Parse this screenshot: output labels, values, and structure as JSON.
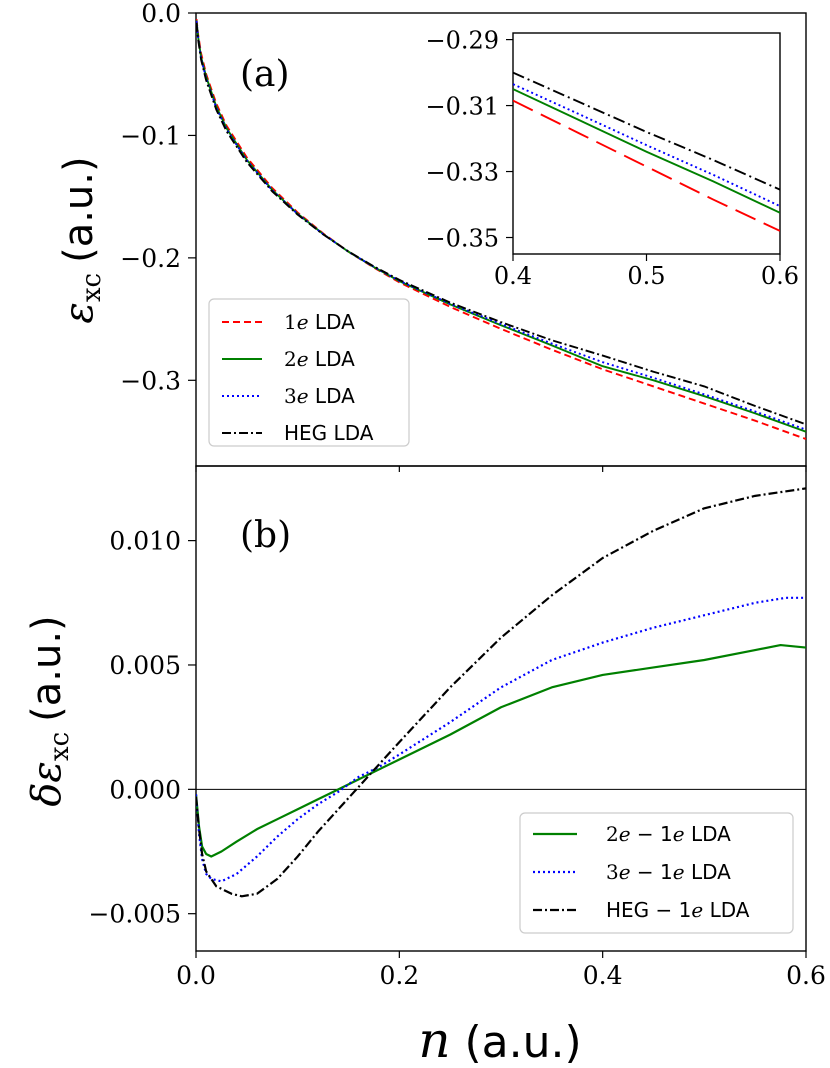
{
  "colors": {
    "red": "#ff0000",
    "green": "#008000",
    "blue": "#0000ff",
    "black": "#000000"
  },
  "chart_data": [
    {
      "id": "panel-a",
      "type": "line",
      "panel_label": "(a)",
      "ylabel": {
        "symbol": "ε",
        "subscript": "xc",
        "units": "(a.u.)"
      },
      "xlabel": {
        "symbol": "n",
        "units": "(a.u.)"
      },
      "xlim": [
        0.0,
        0.6
      ],
      "ylim": [
        -0.37,
        0.0
      ],
      "yticks": [
        0.0,
        -0.1,
        -0.2,
        -0.3
      ],
      "ytick_labels": [
        "0.0",
        "−0.1",
        "−0.2",
        "−0.3"
      ],
      "xticks": [
        0.0,
        0.2,
        0.4,
        0.6
      ],
      "legend_position": "bottom-left",
      "series": [
        {
          "name": "1e LDA",
          "legend_prefix": "1",
          "legend_sym": "e",
          "legend_suffix": " LDA",
          "color": "#ff0000",
          "dash": "7,4",
          "x": [
            0.0005,
            0.002,
            0.005,
            0.01,
            0.02,
            0.03,
            0.05,
            0.075,
            0.1,
            0.125,
            0.15,
            0.175,
            0.2,
            0.25,
            0.3,
            0.35,
            0.4,
            0.45,
            0.5,
            0.55,
            0.6
          ],
          "y": [
            -0.005,
            -0.017,
            -0.033,
            -0.05,
            -0.074,
            -0.092,
            -0.118,
            -0.143,
            -0.163,
            -0.18,
            -0.195,
            -0.208,
            -0.22,
            -0.24,
            -0.258,
            -0.275,
            -0.291,
            -0.305,
            -0.319,
            -0.333,
            -0.348
          ]
        },
        {
          "name": "2e LDA",
          "legend_prefix": "2",
          "legend_sym": "e",
          "legend_suffix": " LDA",
          "color": "#008000",
          "dash": "",
          "x": [
            0.0005,
            0.002,
            0.005,
            0.01,
            0.02,
            0.03,
            0.05,
            0.075,
            0.1,
            0.125,
            0.15,
            0.175,
            0.2,
            0.25,
            0.3,
            0.35,
            0.4,
            0.45,
            0.5,
            0.55,
            0.6
          ],
          "y": [
            -0.006,
            -0.019,
            -0.036,
            -0.052,
            -0.0765,
            -0.094,
            -0.12,
            -0.1445,
            -0.164,
            -0.1805,
            -0.195,
            -0.2075,
            -0.219,
            -0.238,
            -0.255,
            -0.2715,
            -0.2885,
            -0.3,
            -0.313,
            -0.327,
            -0.342
          ]
        },
        {
          "name": "3e LDA",
          "legend_prefix": "3",
          "legend_sym": "e",
          "legend_suffix": " LDA",
          "color": "#0000ff",
          "dash": "2,3",
          "x": [
            0.0005,
            0.002,
            0.005,
            0.01,
            0.02,
            0.03,
            0.05,
            0.075,
            0.1,
            0.125,
            0.15,
            0.175,
            0.2,
            0.25,
            0.3,
            0.35,
            0.4,
            0.45,
            0.5,
            0.55,
            0.6
          ],
          "y": [
            -0.0065,
            -0.0195,
            -0.037,
            -0.0535,
            -0.0775,
            -0.095,
            -0.1205,
            -0.1448,
            -0.1642,
            -0.1806,
            -0.195,
            -0.2074,
            -0.2187,
            -0.2375,
            -0.254,
            -0.27,
            -0.2852,
            -0.298,
            -0.3115,
            -0.3255,
            -0.3403
          ]
        },
        {
          "name": "HEG LDA",
          "legend_prefix": "HEG",
          "legend_sym": "",
          "legend_suffix": " LDA",
          "color": "#000000",
          "dash": "9,3,2,3",
          "x": [
            0.0005,
            0.002,
            0.005,
            0.01,
            0.02,
            0.03,
            0.05,
            0.075,
            0.1,
            0.125,
            0.15,
            0.175,
            0.2,
            0.25,
            0.3,
            0.35,
            0.4,
            0.45,
            0.5,
            0.55,
            0.6
          ],
          "y": [
            -0.008,
            -0.021,
            -0.038,
            -0.055,
            -0.079,
            -0.0965,
            -0.1218,
            -0.1457,
            -0.1647,
            -0.1808,
            -0.1948,
            -0.207,
            -0.218,
            -0.2365,
            -0.2525,
            -0.2673,
            -0.2798,
            -0.293,
            -0.305,
            -0.321,
            -0.336
          ]
        }
      ]
    },
    {
      "id": "inset",
      "type": "line",
      "xlim": [
        0.4,
        0.6
      ],
      "ylim": [
        -0.355,
        -0.288
      ],
      "yticks": [
        -0.29,
        -0.31,
        -0.33,
        -0.35
      ],
      "ytick_labels": [
        "−0.29",
        "−0.31",
        "−0.33",
        "−0.35"
      ],
      "xticks": [
        0.4,
        0.5,
        0.6
      ],
      "xtick_labels": [
        "0.4",
        "0.5",
        "0.6"
      ],
      "series": [
        {
          "name": "1e LDA",
          "color": "#ff0000",
          "dash": "22,9",
          "x": [
            0.4,
            0.45,
            0.5,
            0.55,
            0.6
          ],
          "y": [
            -0.3085,
            -0.3185,
            -0.3285,
            -0.3385,
            -0.348
          ]
        },
        {
          "name": "2e LDA",
          "color": "#008000",
          "dash": "",
          "x": [
            0.4,
            0.45,
            0.5,
            0.55,
            0.6
          ],
          "y": [
            -0.305,
            -0.3145,
            -0.324,
            -0.333,
            -0.3425
          ]
        },
        {
          "name": "3e LDA",
          "color": "#0000ff",
          "dash": "2,3",
          "x": [
            0.4,
            0.45,
            0.5,
            0.55,
            0.6
          ],
          "y": [
            -0.3035,
            -0.3127,
            -0.322,
            -0.331,
            -0.3405
          ]
        },
        {
          "name": "HEG LDA",
          "color": "#000000",
          "dash": "12,4,2,4",
          "x": [
            0.4,
            0.45,
            0.5,
            0.55,
            0.6
          ],
          "y": [
            -0.3,
            -0.309,
            -0.318,
            -0.3265,
            -0.3355
          ]
        }
      ]
    },
    {
      "id": "panel-b",
      "type": "line",
      "panel_label": "(b)",
      "ylabel": {
        "prefix": "δ",
        "symbol": "ε",
        "subscript": "xc",
        "units": "(a.u.)"
      },
      "xlabel": {
        "symbol": "n",
        "units": "(a.u.)"
      },
      "xlim": [
        0.0,
        0.6
      ],
      "ylim": [
        -0.0065,
        0.013
      ],
      "yticks": [
        0.01,
        0.005,
        0.0,
        -0.005
      ],
      "ytick_labels": [
        "0.010",
        "0.005",
        "0.000",
        "−0.005"
      ],
      "xticks": [
        0.0,
        0.2,
        0.4,
        0.6
      ],
      "xtick_labels": [
        "0.0",
        "0.2",
        "0.4",
        "0.6"
      ],
      "hline": 0.0,
      "legend_position": "bottom-right",
      "series": [
        {
          "name": "2e − 1e LDA",
          "legend_parts": [
            "2",
            "e",
            " − 1",
            "e",
            " LDA"
          ],
          "color": "#008000",
          "dash": "",
          "x": [
            0.0,
            0.003,
            0.006,
            0.01,
            0.015,
            0.025,
            0.04,
            0.06,
            0.08,
            0.1,
            0.12,
            0.14,
            0.16,
            0.18,
            0.2,
            0.25,
            0.3,
            0.35,
            0.4,
            0.45,
            0.5,
            0.55,
            0.575,
            0.6
          ],
          "y": [
            -0.0002,
            -0.0015,
            -0.0023,
            -0.0026,
            -0.0027,
            -0.0025,
            -0.0021,
            -0.0016,
            -0.0012,
            -0.0008,
            -0.0004,
            0.0,
            0.0004,
            0.0008,
            0.0012,
            0.0022,
            0.0033,
            0.0041,
            0.0046,
            0.0049,
            0.0052,
            0.0056,
            0.0058,
            0.0057
          ]
        },
        {
          "name": "3e − 1e LDA",
          "legend_parts": [
            "3",
            "e",
            " − 1",
            "e",
            " LDA"
          ],
          "color": "#0000ff",
          "dash": "2,3",
          "x": [
            0.0,
            0.003,
            0.006,
            0.01,
            0.015,
            0.025,
            0.04,
            0.06,
            0.08,
            0.1,
            0.12,
            0.14,
            0.16,
            0.18,
            0.2,
            0.25,
            0.3,
            0.35,
            0.4,
            0.45,
            0.5,
            0.55,
            0.58,
            0.6
          ],
          "y": [
            -0.0002,
            -0.0018,
            -0.0028,
            -0.0034,
            -0.0036,
            -0.0037,
            -0.0034,
            -0.0027,
            -0.0019,
            -0.0012,
            -0.0006,
            -0.0001,
            0.0005,
            0.0009,
            0.0014,
            0.0027,
            0.0041,
            0.0052,
            0.0059,
            0.0065,
            0.007,
            0.0075,
            0.0077,
            0.0077
          ]
        },
        {
          "name": "HEG − 1e LDA",
          "legend_parts": [
            "HEG − 1",
            "e",
            " LDA",
            "",
            ""
          ],
          "color": "#000000",
          "dash": "9,3,2,3",
          "x": [
            0.0,
            0.003,
            0.006,
            0.01,
            0.02,
            0.035,
            0.045,
            0.06,
            0.08,
            0.1,
            0.12,
            0.14,
            0.16,
            0.18,
            0.2,
            0.25,
            0.3,
            0.35,
            0.4,
            0.45,
            0.5,
            0.55,
            0.6
          ],
          "y": [
            -0.0003,
            -0.0016,
            -0.0026,
            -0.0033,
            -0.0039,
            -0.0042,
            -0.0043,
            -0.0042,
            -0.0036,
            -0.0027,
            -0.0017,
            -0.0008,
            0.0001,
            0.001,
            0.0019,
            0.0041,
            0.0061,
            0.0078,
            0.0093,
            0.0104,
            0.0113,
            0.0118,
            0.0121
          ]
        }
      ]
    }
  ]
}
